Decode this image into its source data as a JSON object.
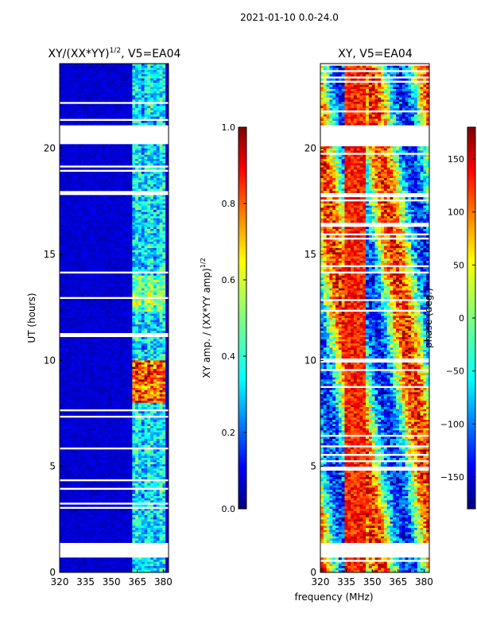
{
  "suptitle": "2021-01-10 0.0-24.0",
  "chart_data": [
    {
      "type": "heatmap",
      "title": "XY/(XX*YY)^{1/2}, V5=EA04",
      "title_main": "XY/(XX*YY)",
      "title_sup": "1/2",
      "title_tail": ", V5=EA04",
      "xlabel": "",
      "ylabel": "UT (hours)",
      "xlim": [
        320,
        383
      ],
      "ylim": [
        0,
        24
      ],
      "xticks": [
        "320",
        "335",
        "350",
        "365",
        "380"
      ],
      "yticks": [
        "0",
        "5",
        "10",
        "15",
        "20"
      ],
      "colorbar": {
        "label": "XY amp. / (XX*YY amp)^{1/2}",
        "label_main": "XY amp. / (XX*YY amp)",
        "label_sup": "1/2",
        "range": [
          0.0,
          1.0
        ],
        "ticks": [
          "0.0",
          "0.2",
          "0.4",
          "0.6",
          "0.8",
          "1.0"
        ],
        "colormap": "jet"
      },
      "blank_hour_ranges": [
        [
          0.7,
          1.4
        ],
        [
          20.2,
          21.1
        ]
      ],
      "note": "amplitude mostly low (dark blue); elevated values concentrated in 362-381 MHz; strongest around UT 8-10"
    },
    {
      "type": "heatmap",
      "title": "XY, V5=EA04",
      "xlabel": "frequency (MHz)",
      "ylabel": "",
      "xlim": [
        320,
        383
      ],
      "ylim": [
        0,
        24
      ],
      "xticks": [
        "320",
        "335",
        "350",
        "365",
        "380"
      ],
      "yticks": [
        "0",
        "5",
        "10",
        "15",
        "20"
      ],
      "colorbar": {
        "label": "phase (deg.)",
        "range": [
          -180,
          180
        ],
        "ticks": [
          "−150",
          "−100",
          "−50",
          "0",
          "50",
          "100",
          "150"
        ],
        "colormap": "jet"
      },
      "blank_hour_ranges": [
        [
          0.7,
          1.4
        ],
        [
          20.2,
          21.1
        ]
      ],
      "note": "phase varies across full range; warm band near 335-345 MHz"
    }
  ],
  "colors": {
    "jet": [
      "#00007f",
      "#0000ff",
      "#007fff",
      "#00ffff",
      "#7fff7f",
      "#ffff00",
      "#ff7f00",
      "#ff0000",
      "#7f0000"
    ]
  }
}
